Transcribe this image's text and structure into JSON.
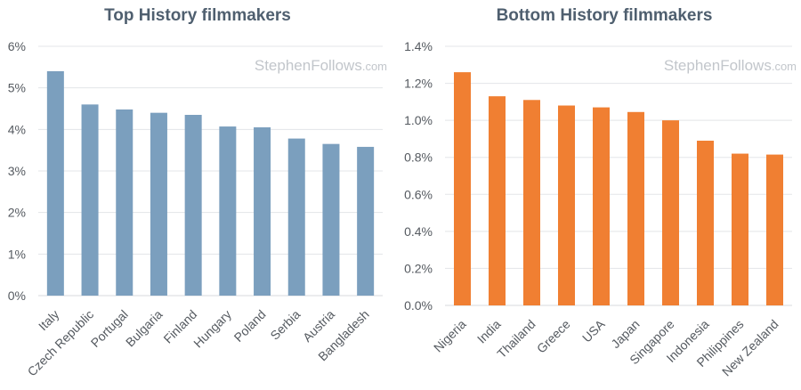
{
  "watermark": {
    "main": "StephenFollows",
    "suffix": ".com"
  },
  "chart_data": [
    {
      "type": "bar",
      "title": "Top History filmmakers",
      "categories": [
        "Italy",
        "Czech Republic",
        "Portugal",
        "Bulgaria",
        "Finland",
        "Hungary",
        "Poland",
        "Serbia",
        "Austria",
        "Bangladesh"
      ],
      "values": [
        5.4,
        4.6,
        4.48,
        4.4,
        4.35,
        4.07,
        4.05,
        3.78,
        3.65,
        3.58
      ],
      "ylim": [
        0,
        6
      ],
      "yticks": [
        0,
        1,
        2,
        3,
        4,
        5,
        6
      ],
      "ytick_labels": [
        "0%",
        "1%",
        "2%",
        "3%",
        "4%",
        "5%",
        "6%"
      ],
      "color": "#7b9fbe",
      "grid": true,
      "legend": "none"
    },
    {
      "type": "bar",
      "title": "Bottom History filmmakers",
      "categories": [
        "Nigeria",
        "India",
        "Thailand",
        "Greece",
        "USA",
        "Japan",
        "Singapore",
        "Indonesia",
        "Philippines",
        "New Zealand"
      ],
      "values": [
        1.26,
        1.13,
        1.11,
        1.08,
        1.07,
        1.045,
        1.0,
        0.89,
        0.82,
        0.815
      ],
      "ylim": [
        0,
        1.4
      ],
      "yticks": [
        0,
        0.2,
        0.4,
        0.6,
        0.8,
        1.0,
        1.2,
        1.4
      ],
      "ytick_labels": [
        "0.0%",
        "0.2%",
        "0.4%",
        "0.6%",
        "0.8%",
        "1.0%",
        "1.2%",
        "1.4%"
      ],
      "color": "#f07f32",
      "grid": true,
      "legend": "none"
    }
  ]
}
